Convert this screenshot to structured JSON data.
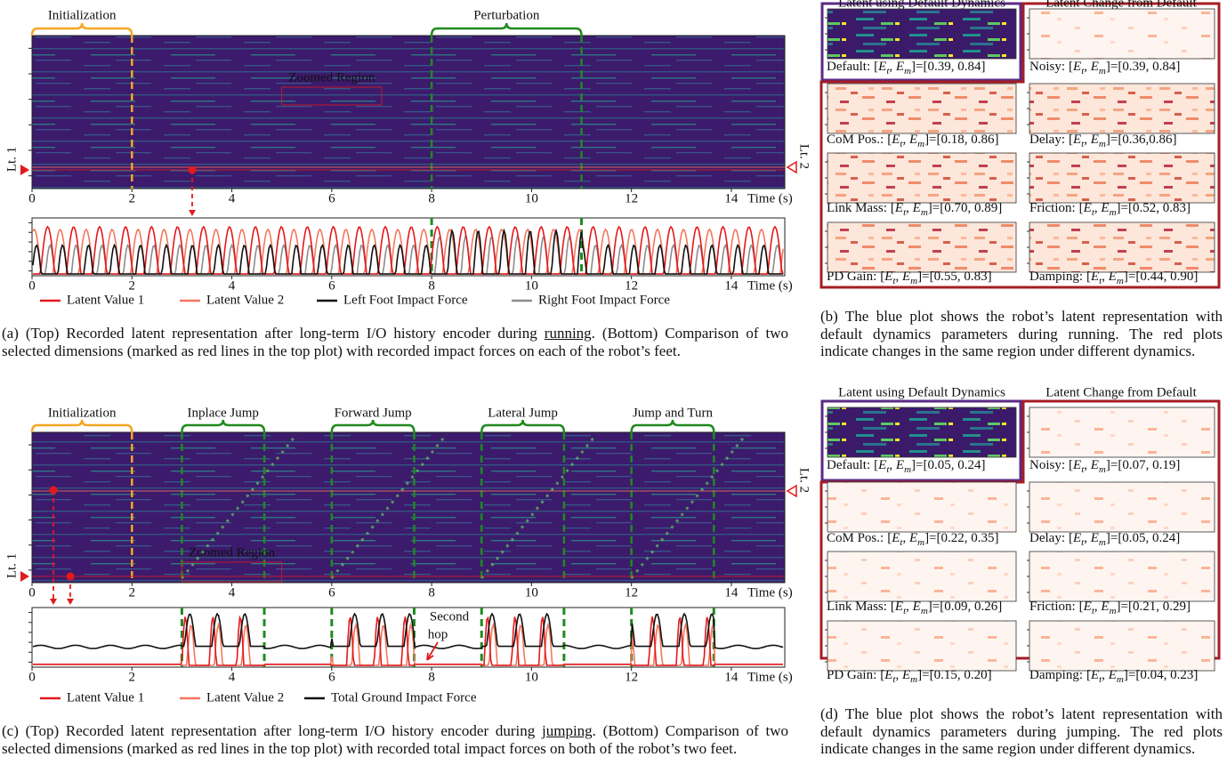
{
  "metric": {
    "open": "[",
    "sym1": "E",
    "sub1": "t",
    "sep": ", ",
    "sym2": "E",
    "sub2": "m",
    "close": "]="
  },
  "panel_a": {
    "top": {
      "xlim": [
        0,
        15.07
      ],
      "xticks": [
        0,
        2,
        4,
        6,
        8,
        10,
        12,
        14
      ],
      "xlabel": "Time (s)",
      "phases": [
        {
          "label": "Initialization",
          "start": 0,
          "end": 2,
          "color": "#f5a623"
        },
        {
          "label": "Perturbation",
          "start": 8,
          "end": 11,
          "color": "#1f8a1f"
        }
      ],
      "zoom_label": "Zoomed Region",
      "latent_labels": [
        "Lt. 1",
        "Lt. 2"
      ]
    },
    "bottom": {
      "xlim": [
        0,
        15.07
      ],
      "xticks": [
        0,
        2,
        4,
        6,
        8,
        10,
        12,
        14
      ],
      "xlabel": "Time (s)"
    },
    "legend": [
      {
        "name": "Latent Value 1",
        "color": "#e3191c"
      },
      {
        "name": "Latent Value 2",
        "color": "#f4775e"
      },
      {
        "name": "Left Foot Impact Force",
        "color": "#111111"
      },
      {
        "name": "Right Foot Impact Force",
        "color": "#8c8c8c"
      }
    ],
    "caption": [
      "(a) (Top) Recorded latent representation after long-term I/O history encoder during ",
      "running",
      ". (Bottom) Comparison of two selected dimensions (marked as red lines in the top plot) with recorded impact forces on each of the robot’s feet."
    ]
  },
  "panel_b": {
    "headers": [
      "Latent using Default Dynamics",
      "Latent Change from Default"
    ],
    "cells": [
      {
        "name": "Default:",
        "value": "[0.39, 0.84]"
      },
      {
        "name": "Noisy:",
        "value": "[0.39, 0.84]"
      },
      {
        "name": "CoM Pos.:",
        "value": "[0.18, 0.86]"
      },
      {
        "name": "Delay:",
        "value": "[0.36,0.86]"
      },
      {
        "name": "Link Mass:",
        "value": "[0.70, 0.89]"
      },
      {
        "name": "Friction:",
        "value": "[0.52, 0.83]"
      },
      {
        "name": "PD Gain:",
        "value": "[0.55, 0.83]"
      },
      {
        "name": "Damping:",
        "value": "[0.44, 0.90]"
      }
    ],
    "caption": "(b) The blue plot shows the robot’s latent repre­sentation with default dynamics parameters during running. The red plots indicate changes in the same region under different dynamics."
  },
  "panel_c": {
    "top": {
      "xlim": [
        0,
        15.07
      ],
      "xticks": [
        0,
        2,
        4,
        6,
        8,
        10,
        12,
        14
      ],
      "xlabel": "Time (s)",
      "phases": [
        {
          "label": "Initialization",
          "start": 0,
          "end": 2,
          "color": "#f5a623"
        },
        {
          "label": "Inplace Jump",
          "start": 3,
          "end": 4.65,
          "color": "#1f8a1f"
        },
        {
          "label": "Forward Jump",
          "start": 6,
          "end": 7.65,
          "color": "#1f8a1f"
        },
        {
          "label": "Lateral Jump",
          "start": 9,
          "end": 10.65,
          "color": "#1f8a1f"
        },
        {
          "label": "Jump and Turn",
          "start": 12,
          "end": 13.65,
          "color": "#1f8a1f"
        }
      ],
      "zoom_label": "Zoomed Region",
      "latent_labels": [
        "Lt. 1",
        "Lt. 2"
      ]
    },
    "bottom": {
      "xlim": [
        0,
        15.07
      ],
      "xticks": [
        0,
        2,
        4,
        6,
        8,
        10,
        12,
        14
      ],
      "xlabel": "Time (s)",
      "annotation": [
        "Second",
        "hop"
      ]
    },
    "legend": [
      {
        "name": "Latent Value 1",
        "color": "#e3191c"
      },
      {
        "name": "Latent Value 2",
        "color": "#f4775e"
      },
      {
        "name": "Total Ground Impact Force",
        "color": "#111111"
      }
    ],
    "caption": [
      "(c) (Top) Recorded latent representation after long-term I/O history encoder during ",
      "jumping",
      ". (Bottom) Comparison of two selected dimensions (marked as red lines in the top plot) with recorded total impact forces on both of the robot’s two feet."
    ]
  },
  "panel_d": {
    "headers": [
      "Latent using Default Dynamics",
      "Latent Change from Default"
    ],
    "cells": [
      {
        "name": "Default:",
        "value": "[0.05, 0.24]"
      },
      {
        "name": "Noisy:",
        "value": "[0.07, 0.19]"
      },
      {
        "name": "CoM Pos.:",
        "value": "[0.22, 0.35]"
      },
      {
        "name": "Delay:",
        "value": "[0.05, 0.24]"
      },
      {
        "name": "Link Mass:",
        "value": "[0.09, 0.26]"
      },
      {
        "name": "Friction:",
        "value": "[0.21, 0.29]"
      },
      {
        "name": "PD Gain:",
        "value": "[0.15, 0.20]"
      },
      {
        "name": "Damping:",
        "value": "[0.04, 0.23]"
      }
    ],
    "caption": "(d) The blue plot shows the robot’s latent repre­sentation with default dynamics parameters during jumping. The red plots indicate changes in the same region under different dynamics."
  }
}
